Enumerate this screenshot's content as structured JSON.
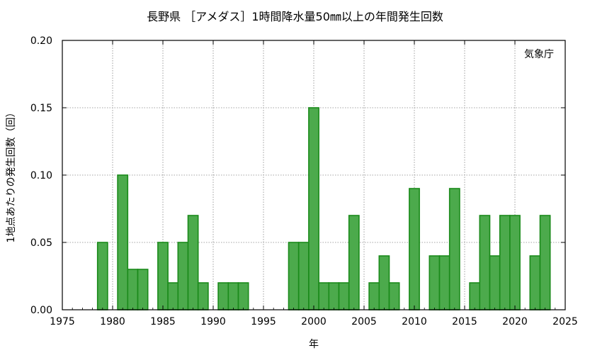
{
  "chart_data": {
    "type": "bar",
    "title": "長野県 ［アメダス］1時間降水量50㎜以上の年間発生回数",
    "xlabel": "年",
    "ylabel": "1地点あたりの発生回数（回）",
    "annotation": "気象庁",
    "xlim": [
      1975,
      2025
    ],
    "ylim": [
      0,
      0.2
    ],
    "x_ticks": [
      "1975",
      "1980",
      "1985",
      "1990",
      "1995",
      "2000",
      "2005",
      "2010",
      "2015",
      "2020",
      "2025"
    ],
    "y_ticks": [
      "0.00",
      "0.05",
      "0.10",
      "0.15",
      "0.20"
    ],
    "grid": true,
    "bar_color": "#4caa4c",
    "bar_edge_color": "#1a8a1a",
    "years": [
      1976,
      1977,
      1978,
      1979,
      1980,
      1981,
      1982,
      1983,
      1984,
      1985,
      1986,
      1987,
      1988,
      1989,
      1990,
      1991,
      1992,
      1993,
      1994,
      1995,
      1996,
      1997,
      1998,
      1999,
      2000,
      2001,
      2002,
      2003,
      2004,
      2005,
      2006,
      2007,
      2008,
      2009,
      2010,
      2011,
      2012,
      2013,
      2014,
      2015,
      2016,
      2017,
      2018,
      2019,
      2020,
      2021,
      2022,
      2023
    ],
    "values": [
      0,
      0,
      0,
      0.05,
      0,
      0.1,
      0.03,
      0.03,
      0,
      0.05,
      0.02,
      0.05,
      0.07,
      0.02,
      0,
      0.02,
      0.02,
      0.02,
      0,
      0,
      0,
      0,
      0.05,
      0.05,
      0.15,
      0.02,
      0.02,
      0.02,
      0.07,
      0,
      0.02,
      0.04,
      0.02,
      0,
      0.09,
      0,
      0.04,
      0.04,
      0.09,
      0,
      0.02,
      0.07,
      0.04,
      0.07,
      0.07,
      0,
      0.04,
      0.07
    ]
  }
}
